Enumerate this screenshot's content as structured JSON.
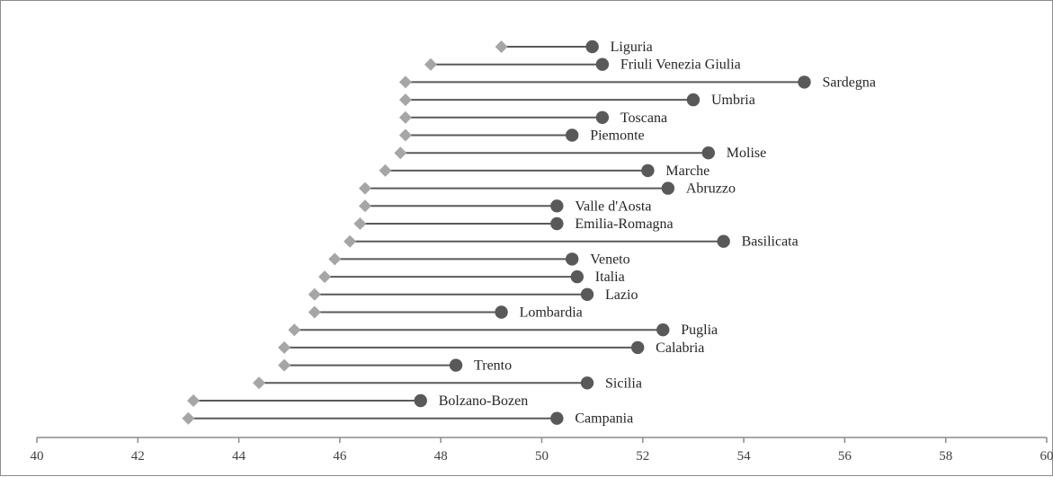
{
  "chart_data": {
    "type": "dumbbell",
    "title": "",
    "xlabel": "",
    "ylabel": "",
    "xlim": [
      40,
      60
    ],
    "x_ticks": [
      40,
      42,
      44,
      46,
      48,
      50,
      52,
      54,
      56,
      58,
      60
    ],
    "grid": false,
    "legend": "none",
    "colors": {
      "start_marker": "#a6a6a6",
      "end_marker": "#595959",
      "connector": "#595959",
      "axis": "#8c8c8c"
    },
    "series": [
      {
        "marker": "diamond"
      },
      {
        "marker": "circle"
      }
    ],
    "rows": [
      {
        "label": "Liguria",
        "start": 49.2,
        "end": 51.0
      },
      {
        "label": "Friuli Venezia Giulia",
        "start": 47.8,
        "end": 51.2
      },
      {
        "label": "Sardegna",
        "start": 47.3,
        "end": 55.2
      },
      {
        "label": "Umbria",
        "start": 47.3,
        "end": 53.0
      },
      {
        "label": "Toscana",
        "start": 47.3,
        "end": 51.2
      },
      {
        "label": "Piemonte",
        "start": 47.3,
        "end": 50.6
      },
      {
        "label": "Molise",
        "start": 47.2,
        "end": 53.3
      },
      {
        "label": "Marche",
        "start": 46.9,
        "end": 52.1
      },
      {
        "label": "Abruzzo",
        "start": 46.5,
        "end": 52.5
      },
      {
        "label": "Valle d'Aosta",
        "start": 46.5,
        "end": 50.3
      },
      {
        "label": "Emilia-Romagna",
        "start": 46.4,
        "end": 50.3
      },
      {
        "label": "Basilicata",
        "start": 46.2,
        "end": 53.6
      },
      {
        "label": "Veneto",
        "start": 45.9,
        "end": 50.6
      },
      {
        "label": "Italia",
        "start": 45.7,
        "end": 50.7
      },
      {
        "label": "Lazio",
        "start": 45.5,
        "end": 50.9
      },
      {
        "label": "Lombardia",
        "start": 45.5,
        "end": 49.2
      },
      {
        "label": "Puglia",
        "start": 45.1,
        "end": 52.4
      },
      {
        "label": "Calabria",
        "start": 44.9,
        "end": 51.9
      },
      {
        "label": "Trento",
        "start": 44.9,
        "end": 48.3
      },
      {
        "label": "Sicilia",
        "start": 44.4,
        "end": 50.9
      },
      {
        "label": "Bolzano-Bozen",
        "start": 43.1,
        "end": 47.6
      },
      {
        "label": "Campania",
        "start": 43.0,
        "end": 50.3
      }
    ]
  }
}
